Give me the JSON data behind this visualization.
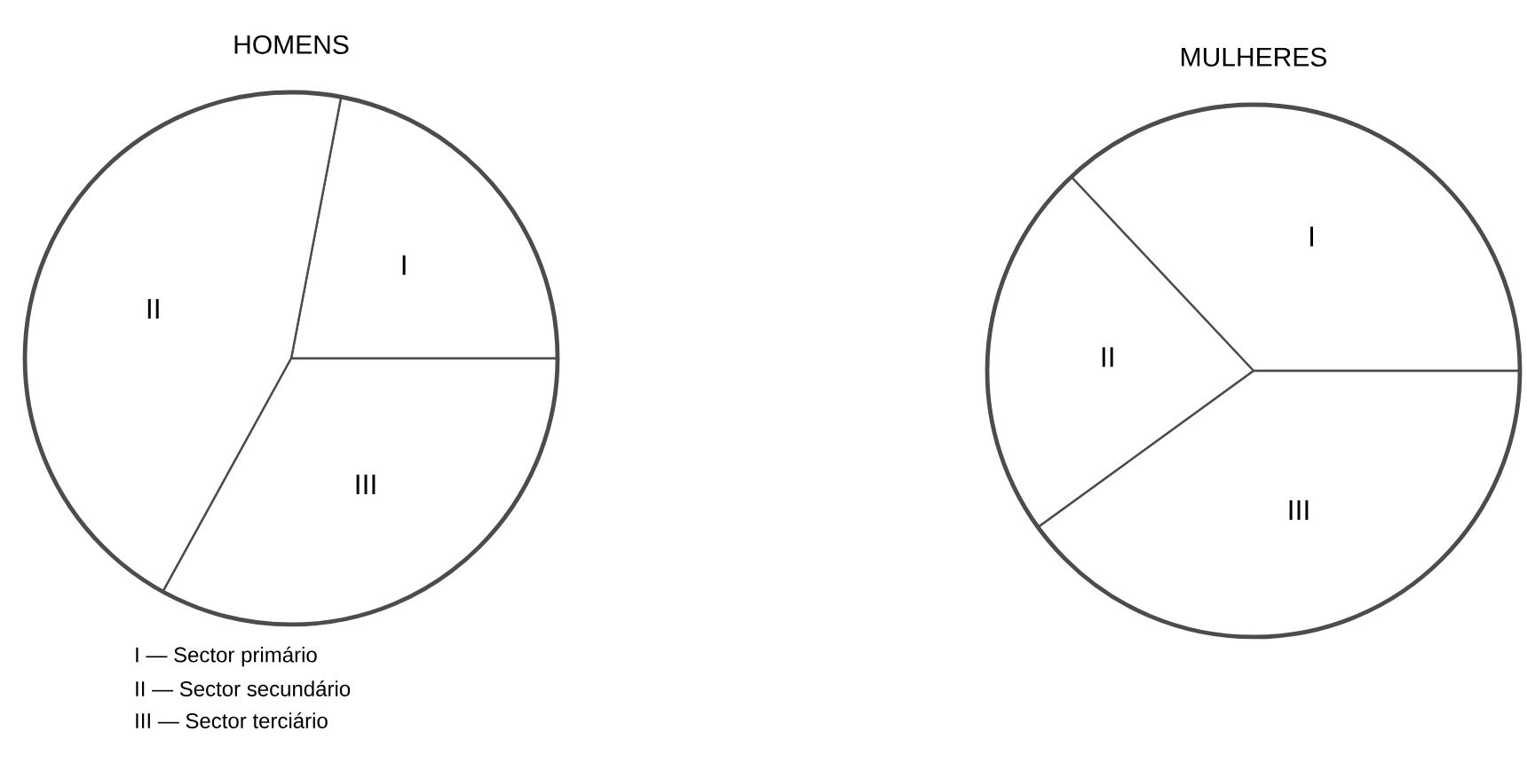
{
  "chart_data": [
    {
      "type": "pie",
      "title": "HOMENS",
      "categories": [
        "I",
        "II",
        "III"
      ],
      "values": [
        22,
        45,
        33
      ],
      "colors": [
        "#ffffff",
        "#ffffff",
        "#ffffff"
      ],
      "annotations": [
        "I — Sector primário",
        "II — Sector secundário",
        "III — Sector terciário"
      ]
    },
    {
      "type": "pie",
      "title": "MULHERES",
      "categories": [
        "I",
        "II",
        "III"
      ],
      "values": [
        37,
        23,
        40
      ],
      "colors": [
        "#ffffff",
        "#ffffff",
        "#ffffff"
      ]
    }
  ]
}
